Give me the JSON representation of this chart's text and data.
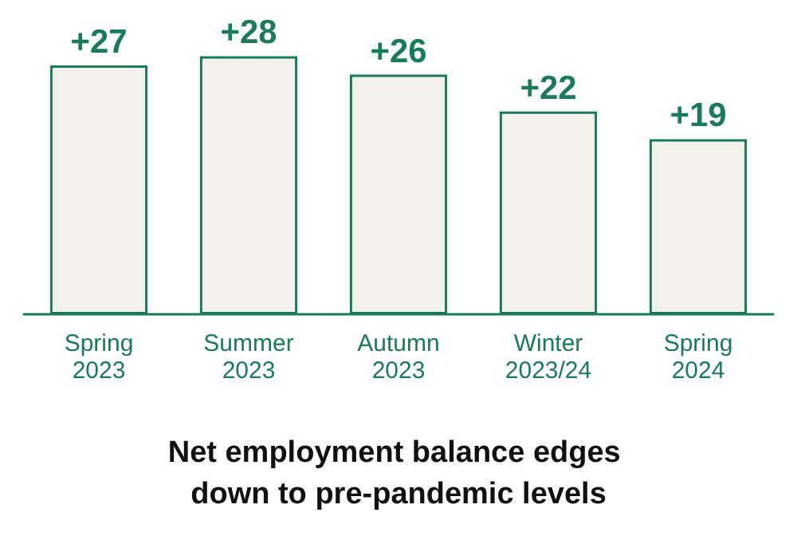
{
  "chart_data": {
    "type": "bar",
    "title": "Net employment balance edges down to pre-pandemic levels",
    "categories": [
      "Spring 2023",
      "Summer 2023",
      "Autumn 2023",
      "Winter 2023/24",
      "Spring 2024"
    ],
    "values": [
      27,
      28,
      26,
      22,
      19
    ],
    "value_labels": [
      "+27",
      "+28",
      "+26",
      "+22",
      "+19"
    ],
    "color": "#f3f1ec"
  }
}
